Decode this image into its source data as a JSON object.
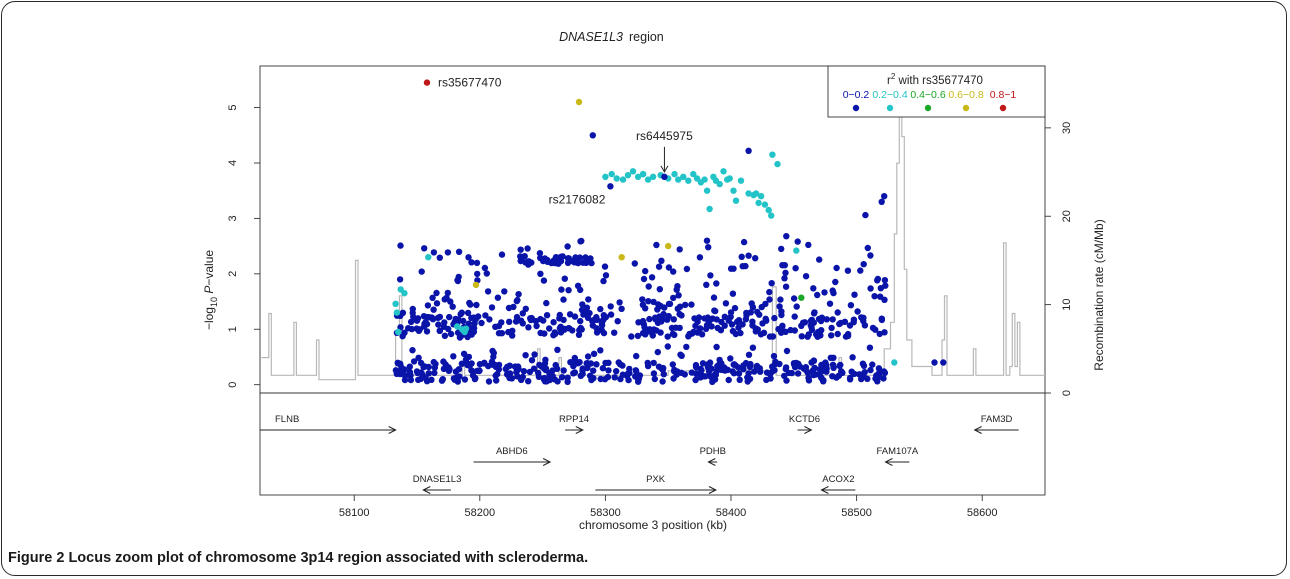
{
  "figure": {
    "title_gene": "DNASE1L3",
    "title_suffix": "region",
    "caption_number": "Figure 2",
    "caption_text": "Locus zoom plot of chromosome 3p14 region associated with scleroderma."
  },
  "chart_data": {
    "type": "scatter",
    "title": "DNASE1L3 region",
    "xlabel": "chromosome 3 position (kb)",
    "ylabel": "-log10 P-value",
    "y2label": "Recombination rate (cM/Mb)",
    "xlim": [
      58025,
      58650
    ],
    "ylim": [
      -0.15,
      5.75
    ],
    "y2lim": [
      0,
      37
    ],
    "x_ticks": [
      58100,
      58200,
      58300,
      58400,
      58500,
      58600
    ],
    "y_ticks": [
      0,
      1,
      2,
      3,
      4,
      5
    ],
    "y2_ticks": [
      0,
      10,
      20,
      30
    ],
    "legend": {
      "title_prefix": "r",
      "title_sup": "2",
      "title_rest": " with rs35677470",
      "position": "top-right",
      "bins": [
        {
          "label": "0−0.2",
          "color": "#0a14a8"
        },
        {
          "label": "0.2−0.4",
          "color": "#22c4c8"
        },
        {
          "label": "0.4−0.6",
          "color": "#1aa828"
        },
        {
          "label": "0.6−0.8",
          "color": "#c8b818"
        },
        {
          "label": "0.8−1",
          "color": "#c01818"
        }
      ]
    },
    "annotations": [
      {
        "label": "rs35677470",
        "x": 58158,
        "y": 5.45,
        "bin": 4,
        "label_side": "right"
      },
      {
        "label": "rs6445975",
        "x": 58347,
        "y": 3.75,
        "bin": 0,
        "label_side": "arrow"
      },
      {
        "label": "rs2176082",
        "x": 58304,
        "y": 3.58,
        "bin": 0,
        "label_side": "below-left"
      }
    ],
    "highlight_points": [
      {
        "x": 58279,
        "y": 5.1,
        "bin": 3
      },
      {
        "x": 58290,
        "y": 4.5,
        "bin": 0
      },
      {
        "x": 58313,
        "y": 2.3,
        "bin": 3
      },
      {
        "x": 58350,
        "y": 2.5,
        "bin": 3
      },
      {
        "x": 58197,
        "y": 1.8,
        "bin": 3
      },
      {
        "x": 58456,
        "y": 1.57,
        "bin": 2
      },
      {
        "x": 58414,
        "y": 4.22,
        "bin": 0
      },
      {
        "x": 58522,
        "y": 3.4,
        "bin": 0
      },
      {
        "x": 58520,
        "y": 3.3,
        "bin": 0
      },
      {
        "x": 58507,
        "y": 3.06,
        "bin": 0
      },
      {
        "x": 58511,
        "y": 2.33,
        "bin": 0
      },
      {
        "x": 58444,
        "y": 2.68,
        "bin": 0
      },
      {
        "x": 58452,
        "y": 2.42,
        "bin": 1
      },
      {
        "x": 58440,
        "y": 2.45,
        "bin": 0
      },
      {
        "x": 58530,
        "y": 0.4,
        "bin": 1
      },
      {
        "x": 58562,
        "y": 0.4,
        "bin": 0
      },
      {
        "x": 58569,
        "y": 0.4,
        "bin": 0
      }
    ],
    "teal_cluster": [
      [
        58300,
        3.75
      ],
      [
        58305,
        3.8
      ],
      [
        58309,
        3.72
      ],
      [
        58314,
        3.7
      ],
      [
        58318,
        3.78
      ],
      [
        58322,
        3.85
      ],
      [
        58326,
        3.75
      ],
      [
        58330,
        3.8
      ],
      [
        58334,
        3.7
      ],
      [
        58338,
        3.75
      ],
      [
        58344,
        3.78
      ],
      [
        58350,
        3.72
      ],
      [
        58355,
        3.8
      ],
      [
        58358,
        3.7
      ],
      [
        58362,
        3.75
      ],
      [
        58366,
        3.68
      ],
      [
        58370,
        3.8
      ],
      [
        58373,
        3.72
      ],
      [
        58376,
        3.65
      ],
      [
        58379,
        3.7
      ],
      [
        58381,
        3.5
      ],
      [
        58383,
        3.17
      ],
      [
        58386,
        3.75
      ],
      [
        58388,
        3.68
      ],
      [
        58391,
        3.62
      ],
      [
        58394,
        3.85
      ],
      [
        58397,
        3.7
      ],
      [
        58399,
        3.72
      ],
      [
        58402,
        3.5
      ],
      [
        58404,
        3.32
      ],
      [
        58408,
        3.68
      ],
      [
        58414,
        3.45
      ],
      [
        58418,
        3.42
      ],
      [
        58420,
        3.45
      ],
      [
        58422,
        3.28
      ],
      [
        58424,
        3.4
      ],
      [
        58427,
        3.25
      ],
      [
        58430,
        3.15
      ],
      [
        58432,
        3.05
      ],
      [
        58433,
        4.15
      ],
      [
        58437,
        3.98
      ],
      [
        58330,
        3.8
      ],
      [
        58159,
        2.3
      ],
      [
        58140,
        1.65
      ],
      [
        58137,
        1.72
      ],
      [
        58133,
        1.46
      ],
      [
        58134,
        1.3
      ],
      [
        58135,
        0.95
      ],
      [
        58182,
        1.05
      ],
      [
        58186,
        1.0
      ],
      [
        58189,
        1.01
      ],
      [
        58188,
        0.95
      ]
    ],
    "recomb_peaks": [
      [
        58026,
        4
      ],
      [
        58030,
        4
      ],
      [
        58032,
        9
      ],
      [
        58034,
        2
      ],
      [
        58050,
        2
      ],
      [
        58052,
        8
      ],
      [
        58054,
        2
      ],
      [
        58068,
        2
      ],
      [
        58070,
        6
      ],
      [
        58072,
        1.5
      ],
      [
        58100,
        1.5
      ],
      [
        58101,
        15
      ],
      [
        58103,
        2
      ],
      [
        58130,
        2
      ],
      [
        58133,
        7
      ],
      [
        58136,
        11
      ],
      [
        58138,
        2
      ],
      [
        58182,
        2
      ],
      [
        58186,
        3
      ],
      [
        58188,
        2
      ],
      [
        58245,
        2
      ],
      [
        58246,
        5
      ],
      [
        58248,
        2
      ],
      [
        58260,
        2
      ],
      [
        58263,
        4
      ],
      [
        58265,
        2
      ],
      [
        58330,
        2
      ],
      [
        58350,
        2.5
      ],
      [
        58430,
        2
      ],
      [
        58433,
        12
      ],
      [
        58436,
        2
      ],
      [
        58460,
        2
      ],
      [
        58464,
        3
      ],
      [
        58467,
        2
      ],
      [
        58484,
        2
      ],
      [
        58486,
        4
      ],
      [
        58488,
        2
      ],
      [
        58520,
        2
      ],
      [
        58522,
        5
      ],
      [
        58527,
        8
      ],
      [
        58530,
        18
      ],
      [
        58532,
        26
      ],
      [
        58534,
        32
      ],
      [
        58536,
        29
      ],
      [
        58538,
        14
      ],
      [
        58540,
        6
      ],
      [
        58544,
        3
      ],
      [
        58560,
        2
      ],
      [
        58568,
        6
      ],
      [
        58570,
        11
      ],
      [
        58572,
        2
      ],
      [
        58590,
        2
      ],
      [
        58593,
        5
      ],
      [
        58595,
        2
      ],
      [
        58615,
        2
      ],
      [
        58617,
        17
      ],
      [
        58619,
        2
      ],
      [
        58622,
        3
      ],
      [
        58624,
        9
      ],
      [
        58626,
        3
      ],
      [
        58628,
        8
      ],
      [
        58630,
        2
      ],
      [
        58650,
        2
      ]
    ],
    "genes": [
      {
        "name": "FLNB",
        "start": 58025,
        "end": 58133,
        "dir": 1,
        "row": 0,
        "label_pos": "left"
      },
      {
        "name": "DNASE1L3",
        "start": 58155,
        "end": 58177,
        "dir": -1,
        "row": 2,
        "label_pos": "center"
      },
      {
        "name": "ABHD6",
        "start": 58195,
        "end": 58256,
        "dir": 1,
        "row": 1,
        "label_pos": "center"
      },
      {
        "name": "RPP14",
        "start": 58268,
        "end": 58282,
        "dir": 1,
        "row": 0,
        "label_pos": "center"
      },
      {
        "name": "PXK",
        "start": 58292,
        "end": 58388,
        "dir": 1,
        "row": 2,
        "label_pos": "center"
      },
      {
        "name": "PDHB",
        "start": 58382,
        "end": 58389,
        "dir": -1,
        "row": 1,
        "label_pos": "center"
      },
      {
        "name": "KCTD6",
        "start": 58453,
        "end": 58464,
        "dir": 1,
        "row": 0,
        "label_pos": "center"
      },
      {
        "name": "ACOX2",
        "start": 58472,
        "end": 58499,
        "dir": -1,
        "row": 2,
        "label_pos": "center"
      },
      {
        "name": "FAM107A",
        "start": 58523,
        "end": 58542,
        "dir": -1,
        "row": 1,
        "label_pos": "center"
      },
      {
        "name": "FAM3D",
        "start": 58594,
        "end": 58629,
        "dir": -1,
        "row": 0,
        "label_pos": "center"
      }
    ]
  }
}
